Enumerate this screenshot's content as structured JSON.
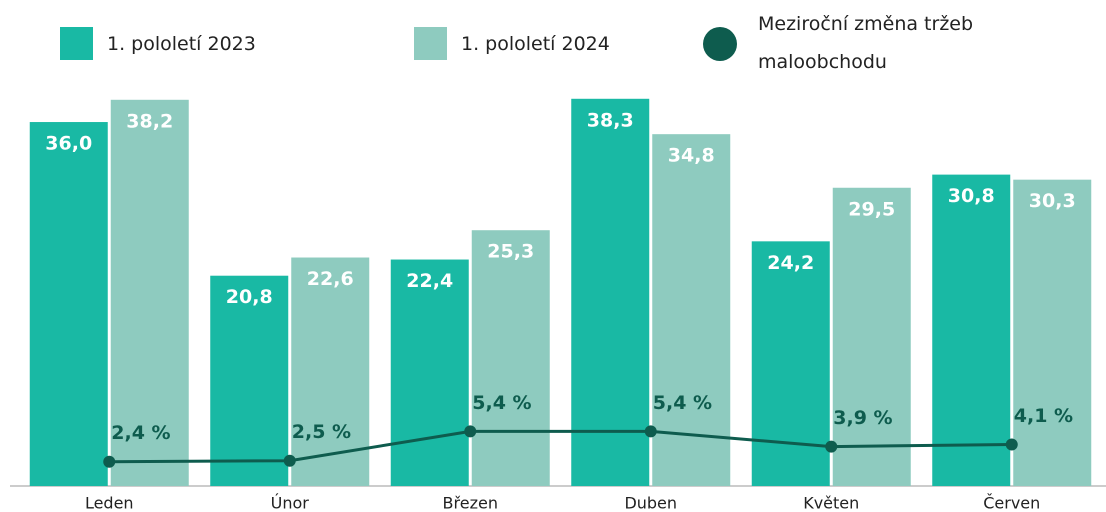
{
  "chart_data": {
    "type": "bar",
    "categories": [
      "Leden",
      "Únor",
      "Březen",
      "Duben",
      "Květen",
      "Červen"
    ],
    "series": [
      {
        "name": "1. pololetí 2023",
        "color": "#19b9a4",
        "values": [
          36.0,
          20.8,
          22.4,
          38.3,
          24.2,
          30.8
        ],
        "value_labels": [
          "36,0",
          "20,8",
          "22,4",
          "38,3",
          "24,2",
          "30,8"
        ]
      },
      {
        "name": "1. pololetí 2024",
        "color": "#8ecbbf",
        "values": [
          38.2,
          22.6,
          25.3,
          34.8,
          29.5,
          30.3
        ],
        "value_labels": [
          "38,2",
          "22,6",
          "25,3",
          "34,8",
          "29,5",
          "30,3"
        ]
      },
      {
        "name": "Meziroční změna tržeb maloobchodu",
        "color": "#0e5c4e",
        "type": "line",
        "values": [
          2.4,
          2.5,
          5.4,
          5.4,
          3.9,
          4.1
        ],
        "value_labels": [
          "2,4 %",
          "2,5 %",
          "5,4 %",
          "5,4 %",
          "3,9 %",
          "4,1 %"
        ]
      }
    ],
    "ylim": [
      0,
      40
    ]
  }
}
